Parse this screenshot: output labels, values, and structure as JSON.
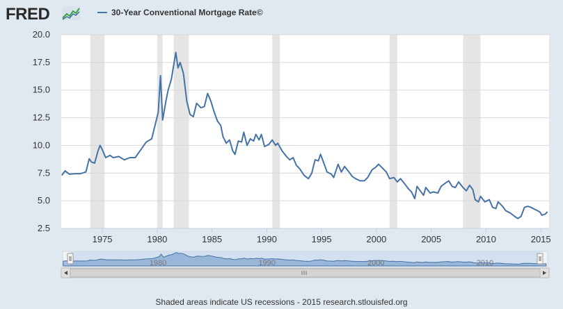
{
  "header": {
    "logo_text": "FRED",
    "logo_graph_icon": "line-graph-icon",
    "series_color": "#4572a7"
  },
  "chart_data": {
    "type": "line",
    "title": "",
    "xlabel": "",
    "ylabel": "",
    "xlim": [
      1971.25,
      2015.75
    ],
    "ylim": [
      2.5,
      20.0
    ],
    "grid": "horizontal",
    "legend_placement": "top-left",
    "yticks": [
      "2.5",
      "5.0",
      "7.5",
      "10.0",
      "12.5",
      "15.0",
      "17.5",
      "20.0"
    ],
    "xticks": [
      "1975",
      "1980",
      "1985",
      "1990",
      "1995",
      "2000",
      "2005",
      "2010",
      "2015"
    ],
    "recessions": [
      [
        1973.9,
        1975.2
      ],
      [
        1980.0,
        1980.5
      ],
      [
        1981.5,
        1982.9
      ],
      [
        1990.5,
        1991.2
      ],
      [
        2001.2,
        2001.9
      ],
      [
        2007.9,
        2009.5
      ]
    ],
    "series": [
      {
        "name": "30-Year Conventional Mortgage Rate©",
        "points": [
          [
            1971.3,
            7.3
          ],
          [
            1971.6,
            7.7
          ],
          [
            1972.0,
            7.4
          ],
          [
            1972.5,
            7.45
          ],
          [
            1973.0,
            7.45
          ],
          [
            1973.5,
            7.6
          ],
          [
            1973.8,
            8.8
          ],
          [
            1974.0,
            8.5
          ],
          [
            1974.3,
            8.4
          ],
          [
            1974.6,
            9.5
          ],
          [
            1974.8,
            10.0
          ],
          [
            1975.0,
            9.6
          ],
          [
            1975.3,
            8.9
          ],
          [
            1975.7,
            9.1
          ],
          [
            1976.0,
            8.9
          ],
          [
            1976.5,
            9.0
          ],
          [
            1977.0,
            8.7
          ],
          [
            1977.5,
            8.9
          ],
          [
            1978.0,
            8.9
          ],
          [
            1978.5,
            9.6
          ],
          [
            1979.0,
            10.3
          ],
          [
            1979.5,
            10.6
          ],
          [
            1979.9,
            12.2
          ],
          [
            1980.1,
            13.0
          ],
          [
            1980.3,
            16.3
          ],
          [
            1980.5,
            12.3
          ],
          [
            1980.8,
            14.0
          ],
          [
            1981.0,
            15.0
          ],
          [
            1981.3,
            16.0
          ],
          [
            1981.7,
            18.4
          ],
          [
            1981.9,
            17.0
          ],
          [
            1982.1,
            17.5
          ],
          [
            1982.4,
            16.5
          ],
          [
            1982.7,
            14.0
          ],
          [
            1983.0,
            12.8
          ],
          [
            1983.3,
            12.6
          ],
          [
            1983.6,
            13.8
          ],
          [
            1984.0,
            13.4
          ],
          [
            1984.3,
            13.5
          ],
          [
            1984.6,
            14.7
          ],
          [
            1984.9,
            14.0
          ],
          [
            1985.2,
            13.0
          ],
          [
            1985.5,
            12.2
          ],
          [
            1985.8,
            11.8
          ],
          [
            1986.0,
            10.8
          ],
          [
            1986.3,
            10.2
          ],
          [
            1986.6,
            10.5
          ],
          [
            1986.9,
            9.5
          ],
          [
            1987.1,
            9.2
          ],
          [
            1987.4,
            10.4
          ],
          [
            1987.7,
            10.3
          ],
          [
            1987.9,
            11.2
          ],
          [
            1988.2,
            10.0
          ],
          [
            1988.5,
            10.6
          ],
          [
            1988.8,
            10.4
          ],
          [
            1989.0,
            11.0
          ],
          [
            1989.3,
            10.5
          ],
          [
            1989.5,
            11.0
          ],
          [
            1989.8,
            9.9
          ],
          [
            1990.2,
            10.1
          ],
          [
            1990.5,
            10.5
          ],
          [
            1990.8,
            10.0
          ],
          [
            1991.0,
            10.2
          ],
          [
            1991.4,
            9.5
          ],
          [
            1991.8,
            9.0
          ],
          [
            1992.1,
            8.7
          ],
          [
            1992.4,
            8.9
          ],
          [
            1992.7,
            8.2
          ],
          [
            1993.0,
            7.9
          ],
          [
            1993.4,
            7.3
          ],
          [
            1993.8,
            7.0
          ],
          [
            1994.1,
            7.5
          ],
          [
            1994.4,
            8.7
          ],
          [
            1994.7,
            8.6
          ],
          [
            1994.9,
            9.2
          ],
          [
            1995.2,
            8.4
          ],
          [
            1995.5,
            7.6
          ],
          [
            1995.9,
            7.4
          ],
          [
            1996.1,
            7.1
          ],
          [
            1996.5,
            8.3
          ],
          [
            1996.8,
            7.6
          ],
          [
            1997.1,
            8.1
          ],
          [
            1997.5,
            7.6
          ],
          [
            1997.8,
            7.2
          ],
          [
            1998.1,
            7.0
          ],
          [
            1998.5,
            6.8
          ],
          [
            1998.9,
            6.8
          ],
          [
            1999.2,
            7.1
          ],
          [
            1999.6,
            7.8
          ],
          [
            1999.9,
            8.0
          ],
          [
            2000.2,
            8.3
          ],
          [
            2000.5,
            8.0
          ],
          [
            2000.9,
            7.6
          ],
          [
            2001.2,
            7.0
          ],
          [
            2001.6,
            7.1
          ],
          [
            2001.9,
            6.7
          ],
          [
            2002.2,
            7.0
          ],
          [
            2002.6,
            6.5
          ],
          [
            2002.9,
            6.1
          ],
          [
            2003.2,
            5.8
          ],
          [
            2003.5,
            5.2
          ],
          [
            2003.7,
            6.3
          ],
          [
            2004.0,
            5.9
          ],
          [
            2004.3,
            5.5
          ],
          [
            2004.5,
            6.2
          ],
          [
            2004.9,
            5.7
          ],
          [
            2005.2,
            5.8
          ],
          [
            2005.6,
            5.7
          ],
          [
            2005.9,
            6.3
          ],
          [
            2006.3,
            6.6
          ],
          [
            2006.6,
            6.8
          ],
          [
            2006.9,
            6.3
          ],
          [
            2007.2,
            6.2
          ],
          [
            2007.5,
            6.7
          ],
          [
            2007.9,
            6.2
          ],
          [
            2008.2,
            5.9
          ],
          [
            2008.5,
            6.4
          ],
          [
            2008.8,
            6.0
          ],
          [
            2009.0,
            5.1
          ],
          [
            2009.3,
            4.9
          ],
          [
            2009.5,
            5.4
          ],
          [
            2009.9,
            4.9
          ],
          [
            2010.3,
            5.1
          ],
          [
            2010.6,
            4.4
          ],
          [
            2010.9,
            4.3
          ],
          [
            2011.1,
            4.9
          ],
          [
            2011.5,
            4.5
          ],
          [
            2011.8,
            4.1
          ],
          [
            2012.2,
            3.9
          ],
          [
            2012.6,
            3.6
          ],
          [
            2012.9,
            3.4
          ],
          [
            2013.2,
            3.6
          ],
          [
            2013.5,
            4.4
          ],
          [
            2013.8,
            4.5
          ],
          [
            2014.1,
            4.4
          ],
          [
            2014.5,
            4.2
          ],
          [
            2014.9,
            4.0
          ],
          [
            2015.1,
            3.7
          ],
          [
            2015.4,
            3.8
          ],
          [
            2015.6,
            4.0
          ]
        ]
      }
    ]
  },
  "navigator": {
    "labels": [
      "1980",
      "1990",
      "2000",
      "2010"
    ],
    "left_arrow_icon": "scroll-left-arrow-icon",
    "right_arrow_icon": "scroll-right-arrow-icon",
    "grip_icon": "scrollbar-grip-icon"
  },
  "footer": {
    "note": "Shaded areas indicate US recessions - 2015 research.stlouisfed.org"
  }
}
